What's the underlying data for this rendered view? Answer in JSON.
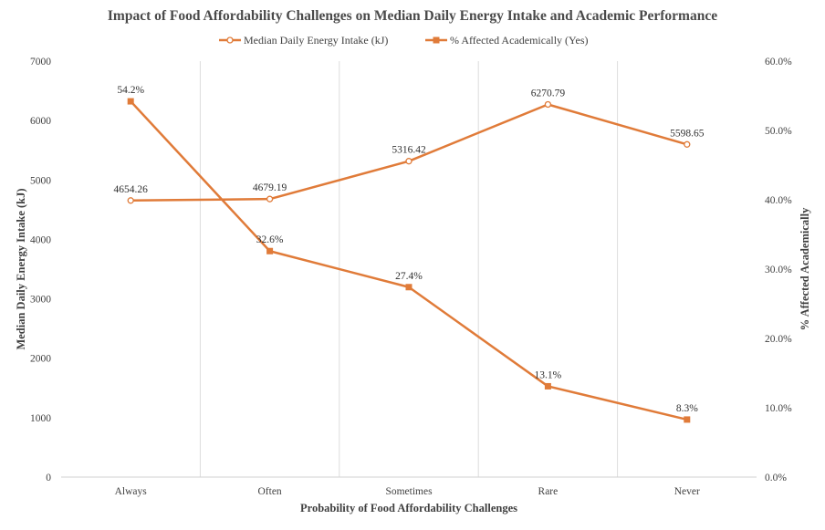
{
  "chart_data": {
    "type": "line",
    "title": "Impact of Food Affordability Challenges on Median Daily Energy Intake and Academic Performance",
    "xlabel": "Probability of Food Affordability Challenges",
    "ylabel": "Median Daily Energy Intake (kJ)",
    "ylabel_right": "% Affected Academically",
    "categories": [
      "Always",
      "Often",
      "Sometimes",
      "Rare",
      "Never"
    ],
    "ylim": [
      0,
      7000
    ],
    "yticks": [
      "0",
      "1000",
      "2000",
      "3000",
      "4000",
      "5000",
      "6000",
      "7000"
    ],
    "ylim_right": [
      0,
      60
    ],
    "yticks_right": [
      "0.0%",
      "10.0%",
      "20.0%",
      "30.0%",
      "40.0%",
      "50.0%",
      "60.0%"
    ],
    "grid": "vertical",
    "legend_position": "top",
    "series": [
      {
        "name": "Median Daily Energy Intake (kJ)",
        "axis": "left",
        "marker": "circle-open",
        "color": "#E07B39",
        "values": [
          4654.26,
          4679.19,
          5316.42,
          6270.79,
          5598.65
        ],
        "labels": [
          "4654.26",
          "4679.19",
          "5316.42",
          "6270.79",
          "5598.65"
        ]
      },
      {
        "name": "% Affected Academically (Yes)",
        "axis": "right",
        "marker": "square",
        "color": "#E07B39",
        "values": [
          54.2,
          32.6,
          27.4,
          13.1,
          8.3
        ],
        "labels": [
          "54.2%",
          "32.6%",
          "27.4%",
          "13.1%",
          "8.3%"
        ]
      }
    ]
  }
}
